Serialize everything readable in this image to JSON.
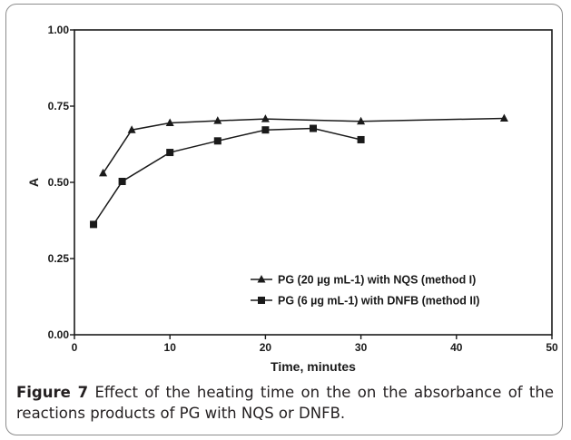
{
  "figure": {
    "label": "Figure 7",
    "caption": "Effect of the heating time on the on the absorbance of the reactions products of PG with NQS or DNFB."
  },
  "chart_data": {
    "type": "line",
    "title": "",
    "xlabel": "Time, minutes",
    "ylabel": "A",
    "xlim": [
      0,
      50
    ],
    "ylim": [
      0,
      1.0
    ],
    "xticks": [
      "0",
      "10",
      "20",
      "30",
      "40",
      "50"
    ],
    "yticks": [
      "0.00",
      "0.25",
      "0.50",
      "0.75",
      "1.00"
    ],
    "xtick_values": [
      0,
      10,
      20,
      30,
      40,
      50
    ],
    "ytick_values": [
      0,
      0.25,
      0.5,
      0.75,
      1.0
    ],
    "grid": false,
    "legend_position": "bottom-right",
    "series": [
      {
        "name": "PG (20 µg mL-1) with NQS (method I)",
        "marker": "triangle",
        "color": "#1a1a1a",
        "x": [
          3,
          6,
          10,
          15,
          20,
          30,
          45
        ],
        "y": [
          0.53,
          0.672,
          0.695,
          0.702,
          0.708,
          0.7,
          0.71
        ]
      },
      {
        "name": "PG (6 µg mL-1) with DNFB (method II)",
        "marker": "square",
        "color": "#1a1a1a",
        "x": [
          2,
          5,
          10,
          15,
          20,
          25,
          30
        ],
        "y": [
          0.362,
          0.503,
          0.598,
          0.636,
          0.672,
          0.677,
          0.64
        ]
      }
    ]
  }
}
